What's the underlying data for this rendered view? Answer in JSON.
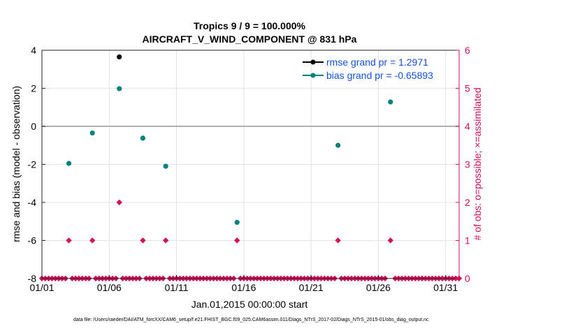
{
  "chart_data": {
    "type": "scatter",
    "title": [
      "Tropics 9 / 9 = 100.000%",
      "AIRCRAFT_V_WIND_COMPONENT @ 831 hPa"
    ],
    "xlabel": "Jan.01,2015 00:00:00 start",
    "ylabel_left": "rmse and bias (model - observation)",
    "ylabel_right": "# of obs: o=possible; ×=assimilated",
    "footer": "data file: /Users/raeder/DAI/ATM_forcXX/CAM6_setup/f.e21.FHIST_BGC.f09_025.CAM6assim.011/Diags_NTrS_2017-02/Diags_NTrS_2015-01/obs_diag_output.nc",
    "xlim": [
      1,
      32
    ],
    "ylim_left": [
      -8,
      4
    ],
    "ylim_right": [
      0,
      6
    ],
    "grid": true,
    "x_ticks": [
      1,
      6,
      11,
      16,
      21,
      26,
      31
    ],
    "x_tick_labels": [
      "01/01",
      "01/06",
      "01/11",
      "01/16",
      "01/21",
      "01/26",
      "01/31"
    ],
    "y_left_ticks": [
      -8,
      -6,
      -4,
      -2,
      0,
      2,
      4
    ],
    "y_left_tick_labels": [
      "-8",
      "-6",
      "-4",
      "-2",
      "0",
      "2",
      "4"
    ],
    "y_right_ticks": [
      0,
      1,
      2,
      3,
      4,
      5,
      6
    ],
    "y_right_tick_labels": [
      "0",
      "1",
      "2",
      "3",
      "4",
      "5",
      "6"
    ],
    "legend_position": "top-right",
    "series": [
      {
        "name": "rmse grand pr = 1.2971",
        "color": "#000000",
        "axis": "left",
        "points": [
          [
            6.75,
            3.65
          ]
        ]
      },
      {
        "name": "bias grand pr = -0.65893",
        "color": "#00807f",
        "axis": "left",
        "points": [
          [
            3.0,
            -1.95
          ],
          [
            4.75,
            -0.35
          ],
          [
            6.75,
            1.98
          ],
          [
            8.5,
            -0.62
          ],
          [
            10.2,
            -2.1
          ],
          [
            15.5,
            -5.05
          ],
          [
            23.0,
            -1.0
          ],
          [
            26.9,
            1.28
          ]
        ]
      },
      {
        "name": "# obs possible/assimilated",
        "color": "#d0105a",
        "axis": "right",
        "nonzero_points": [
          [
            3.0,
            1
          ],
          [
            4.75,
            1
          ],
          [
            6.75,
            2
          ],
          [
            8.5,
            1
          ],
          [
            10.2,
            1
          ],
          [
            15.5,
            1
          ],
          [
            23.0,
            1
          ],
          [
            26.9,
            1
          ]
        ],
        "zero_spacing_days": 0.25
      }
    ]
  }
}
